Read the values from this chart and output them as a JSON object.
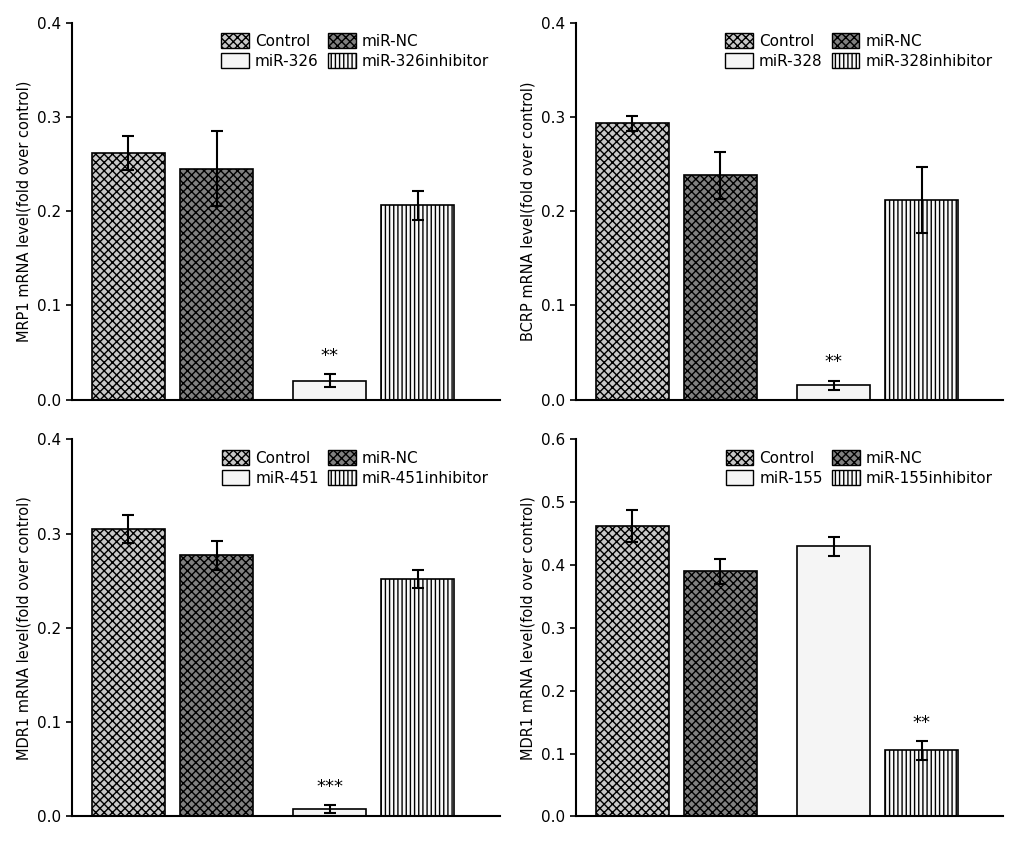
{
  "panels": [
    {
      "ylabel": "MRP1 mRNA level(fold over control)",
      "ylim": [
        0,
        0.4
      ],
      "yticks": [
        0.0,
        0.1,
        0.2,
        0.3,
        0.4
      ],
      "legend_labels": [
        "Control",
        "miR-326",
        "miR-NC",
        "miR-326inhibitor"
      ],
      "values": [
        0.262,
        0.245,
        0.02,
        0.206
      ],
      "errors": [
        0.018,
        0.04,
        0.007,
        0.015
      ],
      "sig_labels": [
        "",
        "",
        "**",
        ""
      ],
      "bar_display_order": [
        0,
        1,
        2,
        3
      ],
      "bar_style_indices": [
        0,
        1,
        2,
        3
      ]
    },
    {
      "ylabel": "BCRP mRNA level(fold over control)",
      "ylim": [
        0,
        0.4
      ],
      "yticks": [
        0.0,
        0.1,
        0.2,
        0.3,
        0.4
      ],
      "legend_labels": [
        "Control",
        "miR-328",
        "miR-NC",
        "miR-328inhibitor"
      ],
      "values": [
        0.293,
        0.238,
        0.015,
        0.212
      ],
      "errors": [
        0.008,
        0.025,
        0.005,
        0.035
      ],
      "sig_labels": [
        "",
        "",
        "**",
        ""
      ],
      "bar_display_order": [
        0,
        1,
        2,
        3
      ],
      "bar_style_indices": [
        0,
        1,
        2,
        3
      ]
    },
    {
      "ylabel": "MDR1 mRNA level(fold over control)",
      "ylim": [
        0,
        0.4
      ],
      "yticks": [
        0.0,
        0.1,
        0.2,
        0.3,
        0.4
      ],
      "legend_labels": [
        "Control",
        "miR-451",
        "miR-NC",
        "miR-451inhibitor"
      ],
      "values": [
        0.305,
        0.277,
        0.008,
        0.252
      ],
      "errors": [
        0.015,
        0.015,
        0.004,
        0.01
      ],
      "sig_labels": [
        "",
        "",
        "***",
        ""
      ],
      "bar_display_order": [
        0,
        1,
        2,
        3
      ],
      "bar_style_indices": [
        0,
        1,
        2,
        3
      ]
    },
    {
      "ylabel": "MDR1 mRNA level(fold over control)",
      "ylim": [
        0,
        0.6
      ],
      "yticks": [
        0.0,
        0.1,
        0.2,
        0.3,
        0.4,
        0.5,
        0.6
      ],
      "legend_labels": [
        "Control",
        "miR-155",
        "miR-NC",
        "miR-155inhibitor"
      ],
      "values": [
        0.462,
        0.39,
        0.43,
        0.105
      ],
      "errors": [
        0.025,
        0.02,
        0.015,
        0.015
      ],
      "sig_labels": [
        "",
        "",
        "",
        "**"
      ],
      "bar_display_order": [
        0,
        1,
        2,
        3
      ],
      "bar_style_indices": [
        0,
        1,
        2,
        3
      ]
    }
  ],
  "bar_styles": [
    {
      "hatch": "xxxx",
      "facecolor": "#c8c8c8",
      "edgecolor": "#000000"
    },
    {
      "hatch": "xxxx",
      "facecolor": "#808080",
      "edgecolor": "#000000"
    },
    {
      "hatch": "====",
      "facecolor": "#f5f5f5",
      "edgecolor": "#000000"
    },
    {
      "hatch": "||||",
      "facecolor": "#f8f8f8",
      "edgecolor": "#000000"
    }
  ],
  "positions": [
    0.45,
    1.15,
    2.05,
    2.75
  ],
  "bar_width": 0.58,
  "background_color": "#ffffff",
  "fontsize_label": 10.5,
  "fontsize_tick": 11,
  "fontsize_legend": 11,
  "fontsize_sig": 13,
  "hatch_linewidth": 1.0
}
